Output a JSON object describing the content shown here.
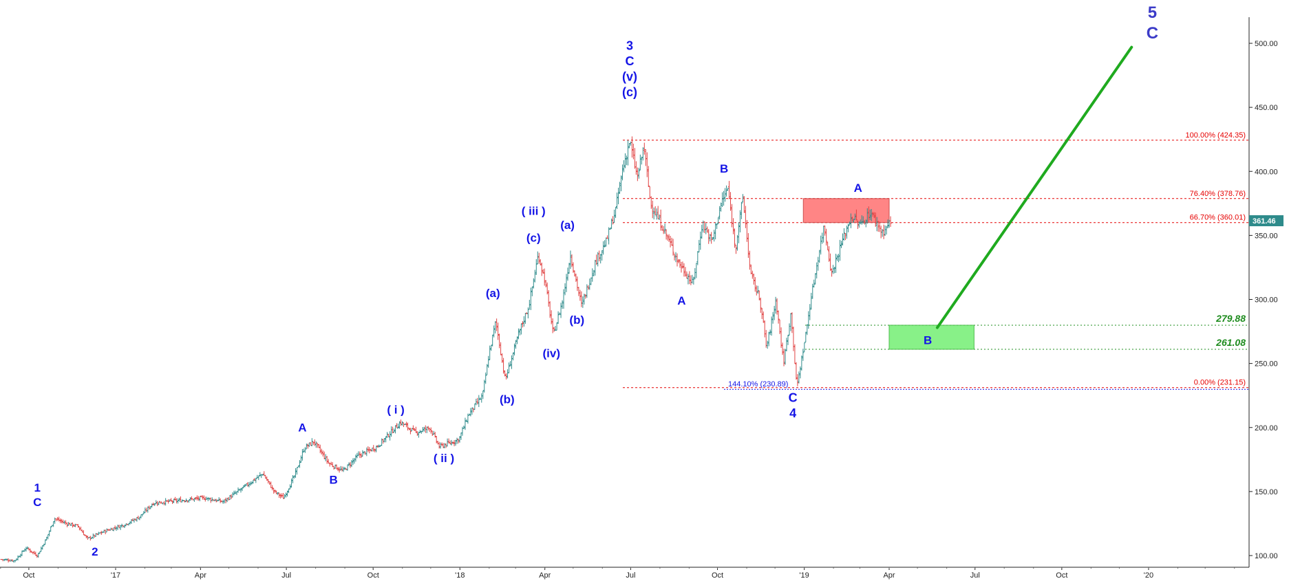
{
  "chart_data": {
    "type": "ohlc",
    "title": "",
    "xlabel": "",
    "ylabel": "",
    "ylim": [
      95,
      525
    ],
    "y_ticks": [
      "100.00",
      "150.00",
      "200.00",
      "250.00",
      "300.00",
      "350.00",
      "400.00",
      "450.00",
      "500.00"
    ],
    "x_ticks": [
      "Oct",
      "'17",
      "Apr",
      "Jul",
      "Oct",
      "'18",
      "Apr",
      "Jul",
      "Oct",
      "'19",
      "Apr",
      "Jul",
      "Oct",
      "'20"
    ],
    "last_price": {
      "label": "361.46",
      "value": 361.46,
      "color": "#2e8b8b"
    },
    "price_path": [
      {
        "date": "2016-09-02",
        "price": 97
      },
      {
        "date": "2016-09-16",
        "price": 96
      },
      {
        "date": "2016-09-28",
        "price": 106
      },
      {
        "date": "2016-10-10",
        "price": 100
      },
      {
        "date": "2016-10-20",
        "price": 114
      },
      {
        "date": "2016-10-28",
        "price": 129
      },
      {
        "date": "2016-11-10",
        "price": 125
      },
      {
        "date": "2016-11-22",
        "price": 123
      },
      {
        "date": "2016-12-02",
        "price": 113
      },
      {
        "date": "2016-12-20",
        "price": 119
      },
      {
        "date": "2017-01-10",
        "price": 124
      },
      {
        "date": "2017-01-26",
        "price": 130
      },
      {
        "date": "2017-02-10",
        "price": 141
      },
      {
        "date": "2017-03-10",
        "price": 143
      },
      {
        "date": "2017-04-05",
        "price": 145
      },
      {
        "date": "2017-04-25",
        "price": 142
      },
      {
        "date": "2017-05-20",
        "price": 155
      },
      {
        "date": "2017-06-06",
        "price": 164
      },
      {
        "date": "2017-06-18",
        "price": 150
      },
      {
        "date": "2017-06-28",
        "price": 145
      },
      {
        "date": "2017-07-10",
        "price": 163
      },
      {
        "date": "2017-07-20",
        "price": 184
      },
      {
        "date": "2017-07-30",
        "price": 189
      },
      {
        "date": "2017-08-15",
        "price": 172
      },
      {
        "date": "2017-08-30",
        "price": 166
      },
      {
        "date": "2017-09-15",
        "price": 178
      },
      {
        "date": "2017-10-05",
        "price": 185
      },
      {
        "date": "2017-10-30",
        "price": 204
      },
      {
        "date": "2017-11-15",
        "price": 196
      },
      {
        "date": "2017-11-30",
        "price": 200
      },
      {
        "date": "2017-12-10",
        "price": 185
      },
      {
        "date": "2017-12-22",
        "price": 188
      },
      {
        "date": "2017-12-31",
        "price": 191
      },
      {
        "date": "2018-01-10",
        "price": 210
      },
      {
        "date": "2018-01-25",
        "price": 225
      },
      {
        "date": "2018-02-01",
        "price": 258
      },
      {
        "date": "2018-02-08",
        "price": 283
      },
      {
        "date": "2018-02-18",
        "price": 237
      },
      {
        "date": "2018-03-05",
        "price": 275
      },
      {
        "date": "2018-03-15",
        "price": 295
      },
      {
        "date": "2018-03-25",
        "price": 335
      },
      {
        "date": "2018-04-01",
        "price": 315
      },
      {
        "date": "2018-04-10",
        "price": 272
      },
      {
        "date": "2018-04-20",
        "price": 300
      },
      {
        "date": "2018-04-28",
        "price": 335
      },
      {
        "date": "2018-05-10",
        "price": 295
      },
      {
        "date": "2018-05-25",
        "price": 330
      },
      {
        "date": "2018-06-05",
        "price": 345
      },
      {
        "date": "2018-06-15",
        "price": 370
      },
      {
        "date": "2018-06-22",
        "price": 400
      },
      {
        "date": "2018-06-30",
        "price": 424
      },
      {
        "date": "2018-07-08",
        "price": 395
      },
      {
        "date": "2018-07-15",
        "price": 420
      },
      {
        "date": "2018-07-22",
        "price": 375
      },
      {
        "date": "2018-08-05",
        "price": 355
      },
      {
        "date": "2018-08-20",
        "price": 330
      },
      {
        "date": "2018-09-05",
        "price": 312
      },
      {
        "date": "2018-09-15",
        "price": 360
      },
      {
        "date": "2018-09-25",
        "price": 345
      },
      {
        "date": "2018-10-05",
        "price": 375
      },
      {
        "date": "2018-10-12",
        "price": 387
      },
      {
        "date": "2018-10-20",
        "price": 340
      },
      {
        "date": "2018-10-28",
        "price": 380
      },
      {
        "date": "2018-11-05",
        "price": 320
      },
      {
        "date": "2018-11-15",
        "price": 300
      },
      {
        "date": "2018-11-22",
        "price": 262
      },
      {
        "date": "2018-12-02",
        "price": 300
      },
      {
        "date": "2018-12-10",
        "price": 250
      },
      {
        "date": "2018-12-18",
        "price": 290
      },
      {
        "date": "2018-12-24",
        "price": 231
      },
      {
        "date": "2019-01-02",
        "price": 270
      },
      {
        "date": "2019-01-08",
        "price": 300
      },
      {
        "date": "2019-01-15",
        "price": 330
      },
      {
        "date": "2019-01-22",
        "price": 358
      },
      {
        "date": "2019-01-30",
        "price": 320
      },
      {
        "date": "2019-02-10",
        "price": 345
      },
      {
        "date": "2019-02-20",
        "price": 365
      },
      {
        "date": "2019-03-01",
        "price": 358
      },
      {
        "date": "2019-03-12",
        "price": 368
      },
      {
        "date": "2019-03-25",
        "price": 352
      },
      {
        "date": "2019-04-03",
        "price": 361
      }
    ],
    "fib_levels": [
      {
        "label": "100.00% (424.35)",
        "value": 424.35
      },
      {
        "label": "76.40% (378.76)",
        "value": 378.76
      },
      {
        "label": "66.70% (360.01)",
        "value": 360.01
      },
      {
        "label": "0.00% (231.15)",
        "value": 231.15
      }
    ],
    "fib_extension": {
      "label": "144.10% (230.89)",
      "value": 230.89
    },
    "target_levels": [
      {
        "label": "279.88",
        "value": 279.88
      },
      {
        "label": "261.08",
        "value": 261.08
      }
    ],
    "resistance_zone": {
      "start": "2018-12-31",
      "end": "2019-04-01",
      "top": 378.76,
      "bottom": 360.01,
      "label": "A",
      "color": "#ff7878"
    },
    "support_zone": {
      "start": "2019-04-01",
      "end": "2019-06-30",
      "top": 279.88,
      "bottom": 261.08,
      "label": "B",
      "color": "#7cf07c"
    },
    "projection": {
      "from": {
        "date": "2019-05-22",
        "price": 278
      },
      "to": {
        "date": "2019-12-14",
        "price": 497
      },
      "color": "#1faa1f"
    },
    "wave_labels": [
      {
        "lines": [
          "1",
          "C"
        ],
        "date": "2016-10-10",
        "price": 150,
        "size": 17,
        "style": "normal"
      },
      {
        "lines": [
          "2"
        ],
        "date": "2016-12-10",
        "price": 100,
        "size": 17,
        "style": "normal"
      },
      {
        "lines": [
          "A"
        ],
        "date": "2017-07-18",
        "price": 197,
        "size": 17,
        "style": "normal"
      },
      {
        "lines": [
          "B"
        ],
        "date": "2017-08-20",
        "price": 156,
        "size": 17,
        "style": "normal"
      },
      {
        "lines": [
          "( i )"
        ],
        "date": "2017-10-25",
        "price": 211,
        "size": 17,
        "style": "normal"
      },
      {
        "lines": [
          "( ii )"
        ],
        "date": "2017-12-15",
        "price": 173,
        "size": 17,
        "style": "normal"
      },
      {
        "lines": [
          "(a)"
        ],
        "date": "2018-02-05",
        "price": 302,
        "size": 17,
        "style": "normal"
      },
      {
        "lines": [
          "(b)"
        ],
        "date": "2018-02-20",
        "price": 219,
        "size": 17,
        "style": "normal"
      },
      {
        "lines": [
          "( iii )"
        ],
        "date": "2018-03-20",
        "price": 366,
        "size": 17,
        "style": "normal"
      },
      {
        "lines": [
          "(c)"
        ],
        "date": "2018-03-20",
        "price": 345,
        "size": 17,
        "style": "normal"
      },
      {
        "lines": [
          "(iv)"
        ],
        "date": "2018-04-08",
        "price": 255,
        "size": 17,
        "style": "normal"
      },
      {
        "lines": [
          "(a)"
        ],
        "date": "2018-04-25",
        "price": 355,
        "size": 17,
        "style": "normal"
      },
      {
        "lines": [
          "(b)"
        ],
        "date": "2018-05-05",
        "price": 281,
        "size": 17,
        "style": "normal"
      },
      {
        "lines": [
          "3",
          "C",
          "(v)",
          "(c)"
        ],
        "date": "2018-06-30",
        "price": 495,
        "size": 18,
        "style": "normal"
      },
      {
        "lines": [
          "A"
        ],
        "date": "2018-08-24",
        "price": 296,
        "size": 17,
        "style": "normal"
      },
      {
        "lines": [
          "B"
        ],
        "date": "2018-10-08",
        "price": 399,
        "size": 17,
        "style": "normal"
      },
      {
        "lines": [
          "A"
        ],
        "date": "2019-02-27",
        "price": 384,
        "size": 17,
        "style": "normal"
      },
      {
        "lines": [
          "C",
          "4"
        ],
        "date": "2018-12-20",
        "price": 220,
        "size": 18,
        "style": "normal"
      },
      {
        "lines": [
          "B"
        ],
        "date": "2019-05-12",
        "price": 265,
        "size": 17,
        "style": "normal"
      },
      {
        "lines": [
          "5",
          "C"
        ],
        "date": "2020-01-05",
        "price": 520,
        "size": 24,
        "style": "big"
      }
    ]
  }
}
